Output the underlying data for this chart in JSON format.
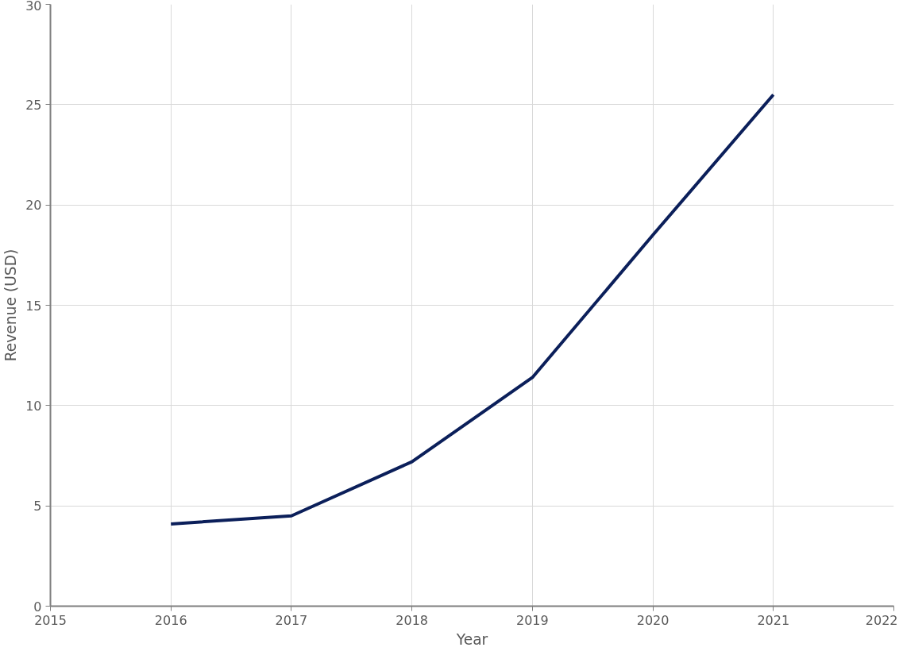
{
  "chart_data": {
    "type": "line",
    "xlabel": "Year",
    "ylabel": "Revenue (USD)",
    "x": [
      2016,
      2017,
      2018,
      2019,
      2020,
      2021
    ],
    "series": [
      {
        "color": "#0b1f5a",
        "values": [
          4.1,
          4.5,
          7.2,
          11.4,
          18.5,
          25.5
        ]
      }
    ],
    "xlim": [
      2015,
      2022
    ],
    "xticks": [
      2015,
      2016,
      2017,
      2018,
      2019,
      2020,
      2021,
      2022
    ],
    "ylim": [
      0,
      30
    ],
    "yticks": [
      0,
      5,
      10,
      15,
      20,
      25,
      30
    ],
    "grid": true,
    "line_style": "solid"
  }
}
